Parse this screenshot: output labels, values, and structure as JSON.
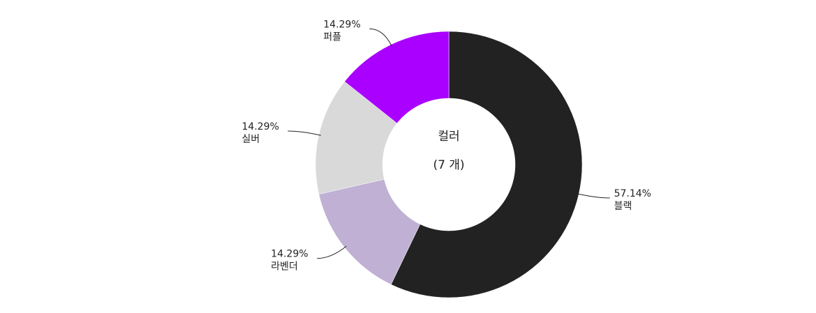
{
  "chart_data": {
    "type": "donut",
    "title": "컬러",
    "subtitle": "(7 개)",
    "categories": [
      "블랙",
      "라벤더",
      "실버",
      "퍼플"
    ],
    "values": [
      57.14,
      14.29,
      14.29,
      14.29
    ],
    "value_labels": [
      "57.14%",
      "14.29%",
      "14.29%",
      "14.29%"
    ],
    "colors": [
      "#222222",
      "#bfb0d4",
      "#d9d9d9",
      "#aa00ff"
    ]
  }
}
